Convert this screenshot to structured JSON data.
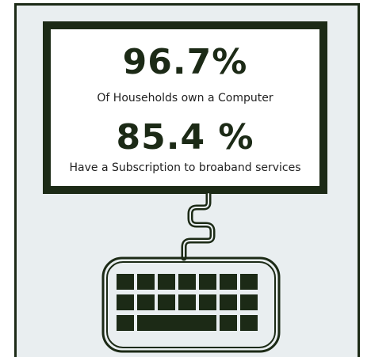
{
  "stats": [
    {
      "value": "96.7%",
      "label": "Of Households own a Computer"
    },
    {
      "value": "85.4 %",
      "label": "Have a Subscription to broaband services"
    }
  ],
  "colors": {
    "dark": "#1c2a16",
    "panel": "#e9eef0",
    "screen": "#ffffff"
  },
  "icons": [
    "monitor-icon",
    "cable-icon",
    "keyboard-icon"
  ]
}
